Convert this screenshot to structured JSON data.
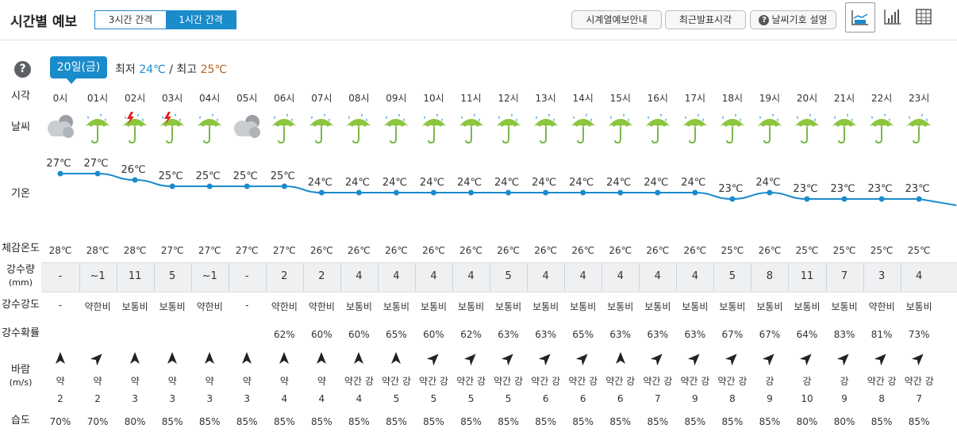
{
  "header": {
    "title": "시간별 예보",
    "interval_3h": "3시간 간격",
    "interval_1h": "1시간 간격",
    "btn_timeseries_guide": "시계열예보안내",
    "btn_latest_release": "최근발표시각",
    "btn_symbol_help": "날씨기호 설명",
    "view_icons": [
      "graph-view-icon",
      "bar-chart-icon",
      "table-view-icon"
    ]
  },
  "day": {
    "label": "20일(금)",
    "min_label": "최저",
    "min_value": "24℃",
    "separator": "/",
    "max_label": "최고",
    "max_value": "25℃"
  },
  "row_labels": {
    "time": "시각",
    "weather": "날씨",
    "temp": "기온",
    "feels": "체감온도",
    "precip_line1": "강수량",
    "precip_line2": "(mm)",
    "intensity": "강수강도",
    "prob": "강수확률",
    "wind_line1": "바람",
    "wind_line2": "(m/s)",
    "humidity": "습도"
  },
  "hours": [
    {
      "time": "0시",
      "weather": "cloudy-icon",
      "temp": 27,
      "temp_text": "27℃",
      "feels": "28℃",
      "precip": "-",
      "intensity": "-",
      "prob": "",
      "wind_dir": 0,
      "wind_level": "약",
      "wind_speed": "2",
      "humidity": "70%"
    },
    {
      "time": "01시",
      "weather": "rain-umbrella-icon",
      "temp": 27,
      "temp_text": "27℃",
      "feels": "28℃",
      "precip": "~1",
      "intensity": "약한비",
      "prob": "",
      "wind_dir": 45,
      "wind_level": "약",
      "wind_speed": "2",
      "humidity": "70%"
    },
    {
      "time": "02시",
      "weather": "thunder-rain-icon",
      "temp": 26,
      "temp_text": "26℃",
      "feels": "28℃",
      "precip": "11",
      "intensity": "보통비",
      "prob": "",
      "wind_dir": 0,
      "wind_level": "약",
      "wind_speed": "3",
      "humidity": "80%"
    },
    {
      "time": "03시",
      "weather": "thunder-rain-icon",
      "temp": 25,
      "temp_text": "25℃",
      "feels": "27℃",
      "precip": "5",
      "intensity": "보통비",
      "prob": "",
      "wind_dir": 0,
      "wind_level": "약",
      "wind_speed": "3",
      "humidity": "85%"
    },
    {
      "time": "04시",
      "weather": "rain-umbrella-icon",
      "temp": 25,
      "temp_text": "25℃",
      "feels": "27℃",
      "precip": "~1",
      "intensity": "약한비",
      "prob": "",
      "wind_dir": 0,
      "wind_level": "약",
      "wind_speed": "3",
      "humidity": "85%"
    },
    {
      "time": "05시",
      "weather": "cloudy-icon",
      "temp": 25,
      "temp_text": "25℃",
      "feels": "27℃",
      "precip": "-",
      "intensity": "-",
      "prob": "",
      "wind_dir": 0,
      "wind_level": "약",
      "wind_speed": "3",
      "humidity": "85%"
    },
    {
      "time": "06시",
      "weather": "rain-umbrella-icon",
      "temp": 25,
      "temp_text": "25℃",
      "feels": "27℃",
      "precip": "2",
      "intensity": "약한비",
      "prob": "62%",
      "wind_dir": 0,
      "wind_level": "약",
      "wind_speed": "4",
      "humidity": "85%"
    },
    {
      "time": "07시",
      "weather": "rain-umbrella-icon",
      "temp": 24,
      "temp_text": "24℃",
      "feels": "26℃",
      "precip": "2",
      "intensity": "약한비",
      "prob": "60%",
      "wind_dir": 0,
      "wind_level": "약",
      "wind_speed": "4",
      "humidity": "85%"
    },
    {
      "time": "08시",
      "weather": "rain-umbrella-icon",
      "temp": 24,
      "temp_text": "24℃",
      "feels": "26℃",
      "precip": "4",
      "intensity": "보통비",
      "prob": "60%",
      "wind_dir": 0,
      "wind_level": "약간 강",
      "wind_speed": "4",
      "humidity": "85%"
    },
    {
      "time": "09시",
      "weather": "rain-umbrella-icon",
      "temp": 24,
      "temp_text": "24℃",
      "feels": "26℃",
      "precip": "4",
      "intensity": "보통비",
      "prob": "65%",
      "wind_dir": 0,
      "wind_level": "약간 강",
      "wind_speed": "5",
      "humidity": "85%"
    },
    {
      "time": "10시",
      "weather": "rain-umbrella-icon",
      "temp": 24,
      "temp_text": "24℃",
      "feels": "26℃",
      "precip": "4",
      "intensity": "보통비",
      "prob": "60%",
      "wind_dir": 45,
      "wind_level": "약간 강",
      "wind_speed": "5",
      "humidity": "85%"
    },
    {
      "time": "11시",
      "weather": "rain-umbrella-icon",
      "temp": 24,
      "temp_text": "24℃",
      "feels": "26℃",
      "precip": "4",
      "intensity": "보통비",
      "prob": "62%",
      "wind_dir": 45,
      "wind_level": "약간 강",
      "wind_speed": "5",
      "humidity": "85%"
    },
    {
      "time": "12시",
      "weather": "rain-umbrella-icon",
      "temp": 24,
      "temp_text": "24℃",
      "feels": "26℃",
      "precip": "5",
      "intensity": "보통비",
      "prob": "63%",
      "wind_dir": 45,
      "wind_level": "약간 강",
      "wind_speed": "5",
      "humidity": "85%"
    },
    {
      "time": "13시",
      "weather": "rain-umbrella-icon",
      "temp": 24,
      "temp_text": "24℃",
      "feels": "26℃",
      "precip": "4",
      "intensity": "보통비",
      "prob": "63%",
      "wind_dir": 45,
      "wind_level": "약간 강",
      "wind_speed": "6",
      "humidity": "85%"
    },
    {
      "time": "14시",
      "weather": "rain-umbrella-icon",
      "temp": 24,
      "temp_text": "24℃",
      "feels": "26℃",
      "precip": "4",
      "intensity": "보통비",
      "prob": "65%",
      "wind_dir": 45,
      "wind_level": "약간 강",
      "wind_speed": "6",
      "humidity": "85%"
    },
    {
      "time": "15시",
      "weather": "rain-umbrella-icon",
      "temp": 24,
      "temp_text": "24℃",
      "feels": "26℃",
      "precip": "4",
      "intensity": "보통비",
      "prob": "63%",
      "wind_dir": 0,
      "wind_level": "약간 강",
      "wind_speed": "6",
      "humidity": "85%"
    },
    {
      "time": "16시",
      "weather": "rain-umbrella-icon",
      "temp": 24,
      "temp_text": "24℃",
      "feels": "26℃",
      "precip": "4",
      "intensity": "보통비",
      "prob": "63%",
      "wind_dir": 45,
      "wind_level": "약간 강",
      "wind_speed": "7",
      "humidity": "85%"
    },
    {
      "time": "17시",
      "weather": "rain-umbrella-icon",
      "temp": 24,
      "temp_text": "24℃",
      "feels": "26℃",
      "precip": "4",
      "intensity": "보통비",
      "prob": "63%",
      "wind_dir": 45,
      "wind_level": "약간 강",
      "wind_speed": "9",
      "humidity": "85%"
    },
    {
      "time": "18시",
      "weather": "rain-umbrella-icon",
      "temp": 23,
      "temp_text": "23℃",
      "feels": "25℃",
      "precip": "5",
      "intensity": "보통비",
      "prob": "67%",
      "wind_dir": 45,
      "wind_level": "약간 강",
      "wind_speed": "8",
      "humidity": "85%"
    },
    {
      "time": "19시",
      "weather": "rain-umbrella-icon",
      "temp": 24,
      "temp_text": "24℃",
      "feels": "26℃",
      "precip": "8",
      "intensity": "보통비",
      "prob": "67%",
      "wind_dir": 45,
      "wind_level": "강",
      "wind_speed": "9",
      "humidity": "85%"
    },
    {
      "time": "20시",
      "weather": "rain-umbrella-icon",
      "temp": 23,
      "temp_text": "23℃",
      "feels": "25℃",
      "precip": "11",
      "intensity": "보통비",
      "prob": "64%",
      "wind_dir": 45,
      "wind_level": "강",
      "wind_speed": "10",
      "humidity": "80%"
    },
    {
      "time": "21시",
      "weather": "rain-umbrella-icon",
      "temp": 23,
      "temp_text": "23℃",
      "feels": "25℃",
      "precip": "7",
      "intensity": "보통비",
      "prob": "83%",
      "wind_dir": 45,
      "wind_level": "강",
      "wind_speed": "9",
      "humidity": "80%"
    },
    {
      "time": "22시",
      "weather": "rain-umbrella-icon",
      "temp": 23,
      "temp_text": "23℃",
      "feels": "25℃",
      "precip": "3",
      "intensity": "약한비",
      "prob": "81%",
      "wind_dir": 45,
      "wind_level": "약간 강",
      "wind_speed": "8",
      "humidity": "85%"
    },
    {
      "time": "23시",
      "weather": "rain-umbrella-icon",
      "temp": 23,
      "temp_text": "23℃",
      "feels": "25℃",
      "precip": "4",
      "intensity": "보통비",
      "prob": "73%",
      "wind_dir": 45,
      "wind_level": "약간 강",
      "wind_speed": "7",
      "humidity": "85%"
    }
  ],
  "colors": {
    "accent": "#1a8bcb",
    "min_temp": "#1a8bcb",
    "max_temp": "#b5651d",
    "band": "#eef0f2",
    "umbrella": "#8cc63f",
    "raindrop": "#3b9fd9"
  }
}
